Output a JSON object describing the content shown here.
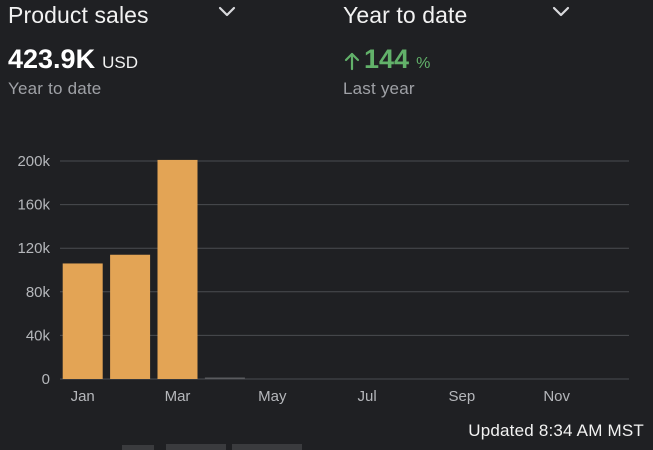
{
  "header": {
    "metric_dropdown": {
      "label": "Product sales"
    },
    "period_dropdown": {
      "label": "Year to date"
    }
  },
  "kpi_left": {
    "value": "423.9K",
    "unit": "USD",
    "subtitle": "Year to date"
  },
  "kpi_right": {
    "change": "144",
    "unit": "%",
    "subtitle": "Last year",
    "direction": "up"
  },
  "footer": {
    "updated": "Updated 8:34 AM MST"
  },
  "colors": {
    "background": "#1f2023",
    "bar": "#e3a455",
    "positive": "#62b16a",
    "grid": "#4a4c51",
    "axis_text": "#b5b7bb"
  },
  "chart_data": {
    "type": "bar",
    "categories": [
      "Jan",
      "Feb",
      "Mar",
      "Apr",
      "May",
      "Jun",
      "Jul",
      "Aug",
      "Sep",
      "Oct",
      "Nov",
      "Dec"
    ],
    "x_tick_labels": [
      "Jan",
      "Mar",
      "May",
      "Jul",
      "Sep",
      "Nov"
    ],
    "values": [
      106000,
      114000,
      201000,
      1000,
      0,
      0,
      0,
      0,
      0,
      0,
      0,
      0
    ],
    "y_ticks": [
      0,
      40000,
      80000,
      120000,
      160000,
      200000
    ],
    "y_tick_labels": [
      "0",
      "40k",
      "80k",
      "120k",
      "160k",
      "200k"
    ],
    "ylim": [
      0,
      200000
    ],
    "grid": true,
    "legend": "none",
    "title": "",
    "xlabel": "",
    "ylabel": ""
  }
}
